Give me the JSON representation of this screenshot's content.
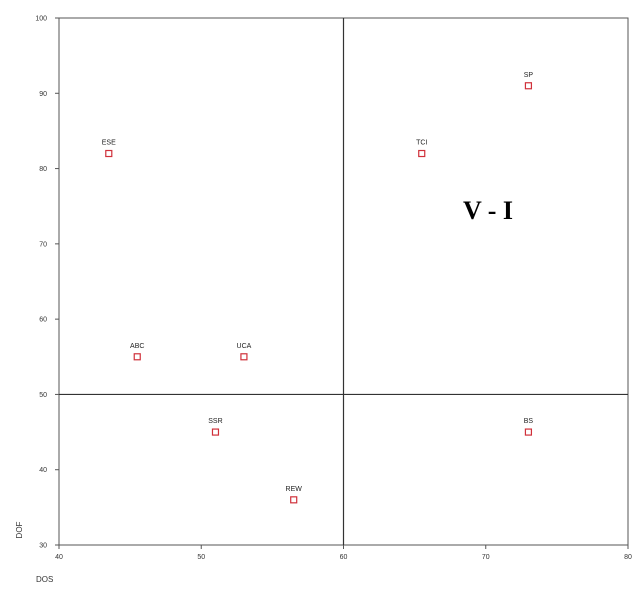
{
  "chart_data": {
    "type": "scatter",
    "title": "",
    "xlabel": "DOS",
    "ylabel": "DOF",
    "xlim": [
      40,
      80
    ],
    "ylim": [
      30,
      100
    ],
    "x_ticks": [
      40,
      50,
      60,
      70,
      80
    ],
    "y_ticks": [
      30,
      40,
      50,
      60,
      70,
      80,
      90,
      100
    ],
    "grid": false,
    "reference_lines": {
      "x": 60,
      "y": 50
    },
    "quadrant_label": "V - I",
    "marker_color": "#d0303a",
    "points": [
      {
        "label": "ESE",
        "x": 43.5,
        "y": 82
      },
      {
        "label": "TCI",
        "x": 65.5,
        "y": 82
      },
      {
        "label": "SP",
        "x": 73,
        "y": 91
      },
      {
        "label": "ABC",
        "x": 45.5,
        "y": 55
      },
      {
        "label": "UCA",
        "x": 53,
        "y": 55
      },
      {
        "label": "SSR",
        "x": 51,
        "y": 45
      },
      {
        "label": "BS",
        "x": 73,
        "y": 45
      },
      {
        "label": "REW",
        "x": 56.5,
        "y": 36
      }
    ]
  }
}
